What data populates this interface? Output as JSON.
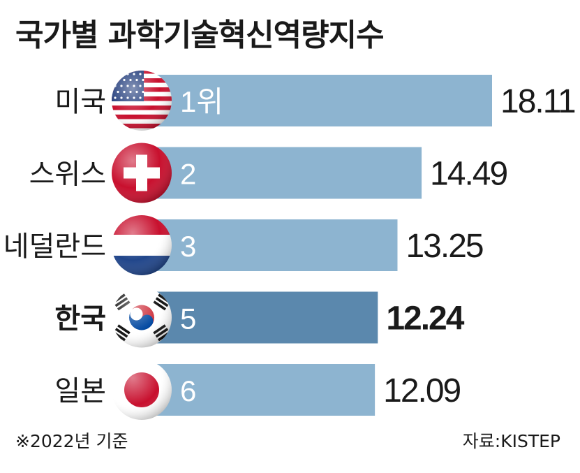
{
  "header": {
    "title": "국가별 과학기술혁신역량지수"
  },
  "footer": {
    "note": "※2022년 기준",
    "source": "자료:KISTEP"
  },
  "colors": {
    "bar": "#8db4d0",
    "highlight_bar": "#5b88ad",
    "text": "#1a1a1a",
    "rank_text": "#ffffff"
  },
  "chart_data": {
    "type": "bar",
    "orientation": "horizontal",
    "title": "국가별 과학기술혁신역량지수",
    "categories": [
      "미국",
      "스위스",
      "네덜란드",
      "한국",
      "일본"
    ],
    "values": [
      18.11,
      14.49,
      13.25,
      12.24,
      12.09
    ],
    "value_labels": [
      "18.11",
      "14.49",
      "13.25",
      "12.24",
      "12.09"
    ],
    "ranks": [
      "1위",
      "2",
      "3",
      "5",
      "6"
    ],
    "highlight": "한국",
    "flag_icons": [
      "usa-flag-icon",
      "switzerland-flag-icon",
      "netherlands-flag-icon",
      "korea-flag-icon",
      "japan-flag-icon"
    ],
    "grid": false,
    "legend": "none"
  }
}
